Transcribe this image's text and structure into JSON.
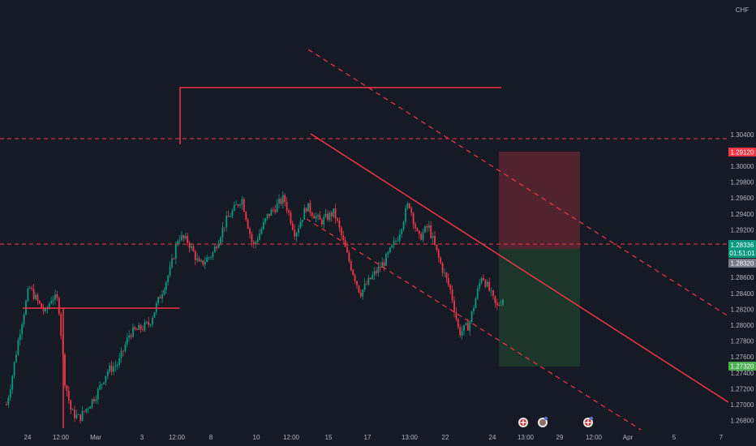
{
  "symbol": {
    "quote_currency": "CHF"
  },
  "chart_data": {
    "type": "candlestick",
    "title": "",
    "y_axis": {
      "position": "right",
      "range": [
        1.268,
        1.3048
      ],
      "ticks": [
        "1.30400",
        "1.30200",
        "1.30000",
        "1.29800",
        "1.29600",
        "1.29400",
        "1.29200",
        "1.29000",
        "1.28800",
        "1.28600",
        "1.28400",
        "1.28200",
        "1.28000",
        "1.27800",
        "1.27600",
        "1.27400",
        "1.27200",
        "1.27000",
        "1.26800"
      ]
    },
    "x_axis": {
      "ticks": [
        "24",
        "12:00",
        "Mar",
        "3",
        "12:00",
        "8",
        "10",
        "12:00",
        "15",
        "17",
        "13:00",
        "22",
        "24",
        "13:00",
        "29",
        "12:00",
        "Apr",
        "5",
        "7"
      ]
    },
    "price_labels": {
      "alert_level": {
        "value": "1.29120",
        "color": "#f23645"
      },
      "current_price": {
        "value": "1.28336",
        "countdown": "01:51:01",
        "color": "#089981"
      },
      "entry_level": {
        "value": "1.28320",
        "color": "#787b86"
      },
      "target_level": {
        "value": "1.27320",
        "color": "#4caf50"
      }
    },
    "drawings": {
      "resistance_line": {
        "price": 1.2967
      },
      "support_line": {
        "price": 1.278
      },
      "upper_dashed_level": {
        "price": 1.2926
      },
      "lower_dashed_level": {
        "price": 1.2836
      },
      "short_position": {
        "entry": 1.2832,
        "stop": 1.2912,
        "target": 1.2732
      }
    },
    "grid": false,
    "colors": {
      "up": "#089981",
      "down": "#f23645",
      "drawing": "#f23645",
      "background": "#161a25"
    }
  }
}
